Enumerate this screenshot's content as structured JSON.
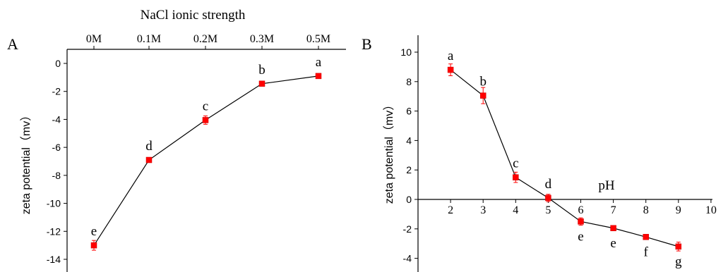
{
  "chart_data": [
    {
      "type": "line",
      "panel_label": "A",
      "title": "",
      "xlabel": "NaCl ionic strength",
      "xlabel_position": "top",
      "ylabel": "zeta potential（mv）",
      "categories": [
        "0M",
        "0.1M",
        "0.2M",
        "0.3M",
        "0.5M"
      ],
      "ylim": [
        -14.5,
        0.5
      ],
      "yticks": [
        0,
        -2,
        -4,
        -6,
        -8,
        -10,
        -12,
        -14
      ],
      "series": [
        {
          "values": [
            -13.0,
            -6.9,
            -4.05,
            -1.45,
            -0.9
          ],
          "errors": [
            0.35,
            0.1,
            0.3,
            0.1,
            0.08
          ],
          "labels": [
            "e",
            "d",
            "c",
            "b",
            "a"
          ]
        }
      ],
      "grid": false
    },
    {
      "type": "line",
      "panel_label": "B",
      "title": "",
      "xlabel": "pH",
      "ylabel": "zeta potential（mv）",
      "xlim": [
        1,
        10
      ],
      "xticks": [
        2,
        3,
        4,
        5,
        6,
        7,
        8,
        9,
        10
      ],
      "ylim": [
        -5,
        10.5
      ],
      "yticks": [
        10,
        8,
        6,
        4,
        2,
        0,
        -2,
        -4
      ],
      "series": [
        {
          "x": [
            2,
            3,
            4,
            5,
            6,
            7,
            8,
            9
          ],
          "values": [
            8.8,
            7.05,
            1.5,
            0.1,
            -1.5,
            -1.95,
            -2.55,
            -3.2
          ],
          "errors": [
            0.4,
            0.55,
            0.35,
            0.25,
            0.25,
            0.1,
            0.1,
            0.3
          ],
          "labels": [
            "a",
            "b",
            "c",
            "d",
            "e",
            "e",
            "f",
            "g"
          ]
        }
      ],
      "grid": false
    }
  ]
}
